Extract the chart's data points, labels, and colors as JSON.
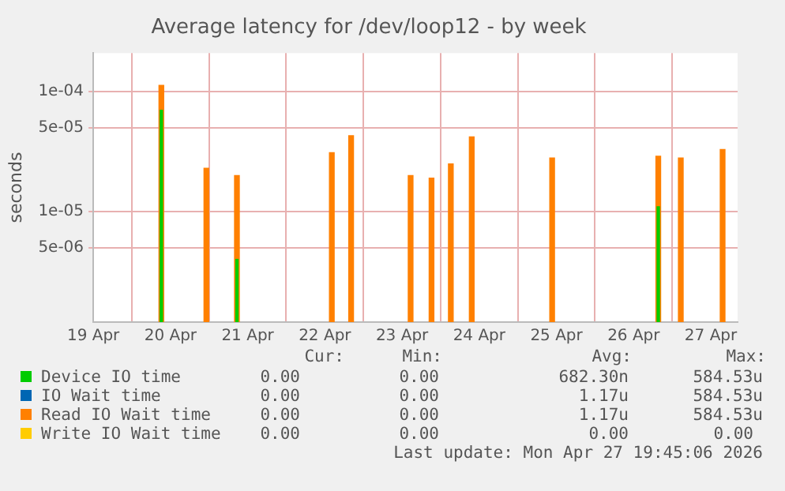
{
  "chart_data": {
    "type": "bar",
    "title": "Average latency for /dev/loop12 - by week",
    "ylabel": "seconds",
    "x": [
      "2026-04-19T21:10",
      "2026-04-20T11:10",
      "2026-04-20T20:40",
      "2026-04-22T02:10",
      "2026-04-22T08:10",
      "2026-04-23T02:40",
      "2026-04-23T09:10",
      "2026-04-23T15:10",
      "2026-04-23T21:40",
      "2026-04-24T22:40",
      "2026-04-26T07:40",
      "2026-04-26T14:40",
      "2026-04-27T03:40"
    ],
    "series": [
      {
        "name": "Device IO time",
        "color": "#00cc00",
        "values": [
          7e-05,
          null,
          4e-06,
          null,
          null,
          null,
          null,
          null,
          null,
          null,
          1.1e-05,
          null,
          null
        ]
      },
      {
        "name": "IO Wait time",
        "color": "#0066b3",
        "values": [
          null,
          null,
          null,
          null,
          null,
          null,
          null,
          null,
          null,
          null,
          null,
          null,
          null
        ]
      },
      {
        "name": "Read IO Wait time",
        "color": "#ff8000",
        "values": [
          0.000113,
          2.3e-05,
          2e-05,
          3.1e-05,
          4.3e-05,
          2e-05,
          1.9e-05,
          2.5e-05,
          4.2e-05,
          2.8e-05,
          2.9e-05,
          2.8e-05,
          3.3e-05
        ]
      },
      {
        "name": "Write IO Wait time",
        "color": "#ffcc00",
        "values": [
          null,
          null,
          null,
          null,
          null,
          null,
          null,
          null,
          null,
          null,
          null,
          null,
          null
        ]
      }
    ],
    "log": "y",
    "grid": true,
    "legend": "bottom",
    "xlim": [
      "2026-04-19T00:00",
      "2026-04-27T08:20"
    ],
    "xticks": [
      {
        "value": "2026-04-19",
        "label": "19 Apr"
      },
      {
        "value": "2026-04-20",
        "label": "20 Apr"
      },
      {
        "value": "2026-04-21",
        "label": "21 Apr"
      },
      {
        "value": "2026-04-22",
        "label": "22 Apr"
      },
      {
        "value": "2026-04-23",
        "label": "23 Apr"
      },
      {
        "value": "2026-04-24",
        "label": "24 Apr"
      },
      {
        "value": "2026-04-25",
        "label": "25 Apr"
      },
      {
        "value": "2026-04-26",
        "label": "26 Apr"
      },
      {
        "value": "2026-04-27",
        "label": "27 Apr"
      }
    ],
    "ylim": [
      1.2e-06,
      0.00021
    ],
    "yticks": [
      {
        "value": 5e-06,
        "label": "5e-06"
      },
      {
        "value": 1e-05,
        "label": "1e-05"
      },
      {
        "value": 5e-05,
        "label": "5e-05"
      },
      {
        "value": 0.0001,
        "label": "1e-04"
      }
    ],
    "annotations": [
      "Cur:",
      "Min:",
      "Avg:",
      "Max:",
      "0.00",
      "0.00",
      "682.30n",
      "584.53u",
      "0.00",
      "0.00",
      "1.17u",
      "584.53u",
      "0.00",
      "0.00",
      "1.17u",
      "584.53u",
      "0.00",
      "0.00",
      "0.00",
      "0.00",
      "Last update: Mon Apr 27 19:45:06 2026"
    ]
  }
}
